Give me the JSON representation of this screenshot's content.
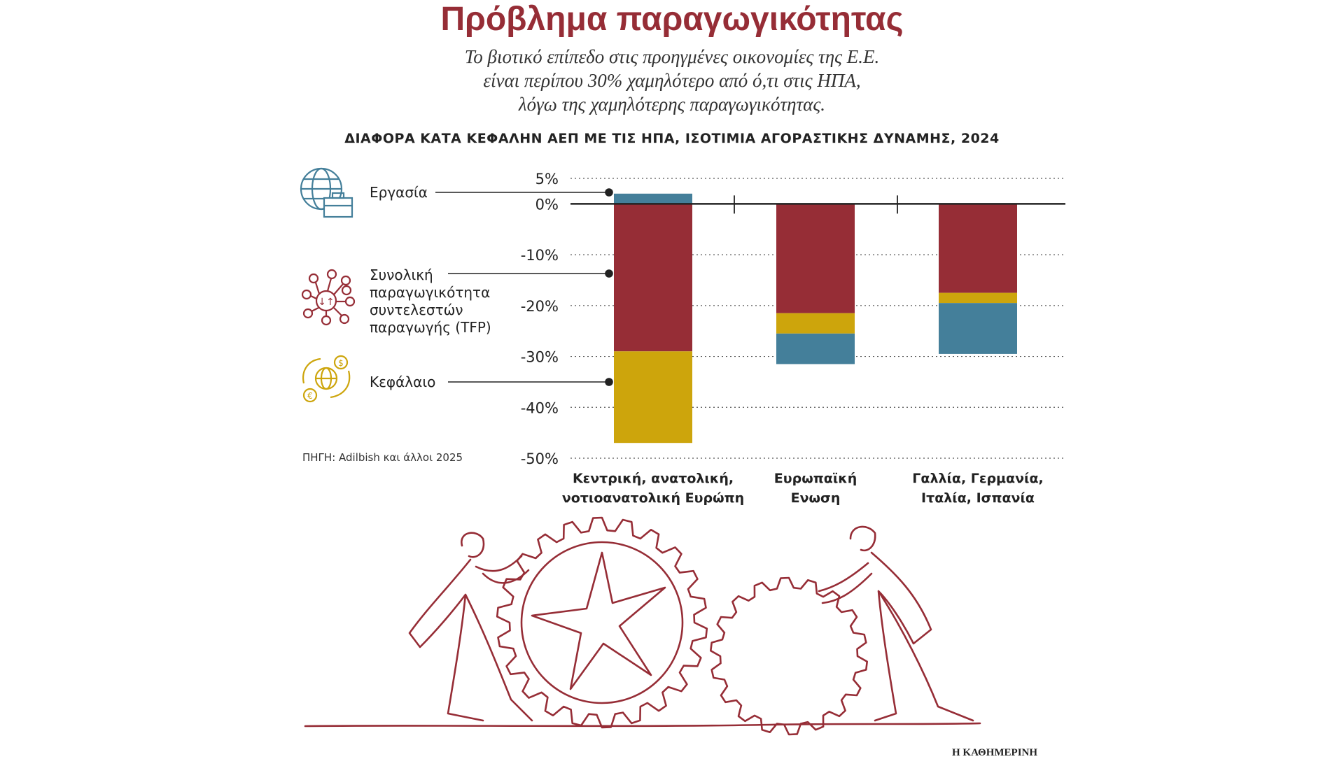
{
  "header": {
    "title": "Πρόβλημα παραγωγικότητας",
    "subtitle_lines": [
      "Το βιοτικό επίπεδο στις προηγμένες οικονομίες της Ε.Ε.",
      "είναι περίπου 30% χαμηλότερο από ό,τι στις ΗΠΑ,",
      "λόγω της χαμηλότερης παραγωγικότητας."
    ]
  },
  "legend": {
    "items": [
      {
        "label": "Εργασία",
        "icon": "globe-briefcase-icon",
        "color": "#447f9a"
      },
      {
        "label_lines": [
          "Συνολική",
          "παραγωγικότητα",
          "συντελεστών",
          "παραγωγής (TFP)"
        ],
        "icon": "network-icon",
        "color": "#962d36"
      },
      {
        "label": "Κεφάλαιο",
        "icon": "globe-currency-icon",
        "color": "#cda50c"
      }
    ]
  },
  "source": "ΠΗΓΗ: Adilbish και άλλοι 2025",
  "credit": "Η ΚΑΘΗΜΕΡΙΝΗ",
  "chart_data": {
    "type": "bar",
    "stacked": true,
    "title": "ΔΙΑΦΟΡΑ ΚΑΤΑ ΚΕΦΑΛΗΝ ΑΕΠ ΜΕ ΤΙΣ ΗΠΑ, ΙΣΟΤΙΜΙΑ ΑΓΟΡΑΣΤΙΚΗΣ ΔΥΝΑΜΗΣ, 2024",
    "categories": [
      [
        "Κεντρική, ανατολική,",
        "νοτιοανατολική Ευρώπη"
      ],
      [
        "Ευρωπαϊκή",
        "Ενωση"
      ],
      [
        "Γαλλία, Γερμανία,",
        "Ιταλία, Ισπανία"
      ]
    ],
    "series": [
      {
        "name": "Εργασία",
        "color": "#447f9a",
        "values": [
          2,
          -6,
          -10
        ]
      },
      {
        "name": "Συνολική παραγωγικότητα συντελεστών παραγωγής (TFP)",
        "color": "#962d36",
        "values": [
          -29,
          -21.5,
          -17.5
        ]
      },
      {
        "name": "Κεφάλαιο",
        "color": "#cda50c",
        "values": [
          -18,
          -4,
          -2
        ]
      }
    ],
    "stack_order_negative": [
      "Συνολική παραγωγικότητα συντελεστών παραγωγής (TFP)",
      "Κεφάλαιο",
      "Εργασία"
    ],
    "ylim": [
      -50,
      5
    ],
    "yticks": [
      5,
      0,
      -10,
      -20,
      -30,
      -40,
      -50
    ],
    "ytick_labels": [
      "5%",
      "0%",
      "-10%",
      "-20%",
      "-30%",
      "-40%",
      "-50%"
    ],
    "grid": true,
    "xlabel": "",
    "ylabel": ""
  }
}
